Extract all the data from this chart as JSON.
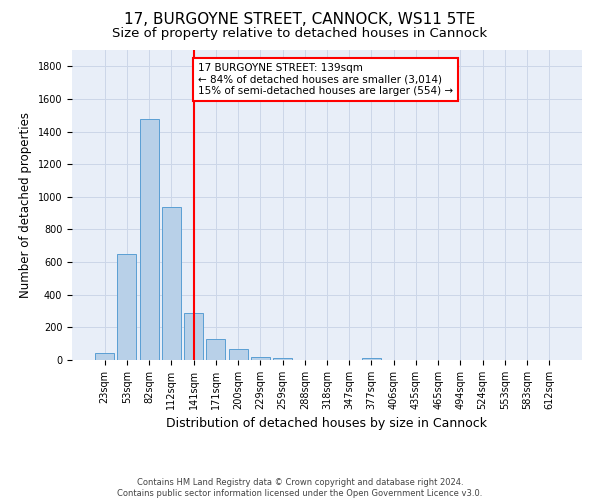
{
  "title_line1": "17, BURGOYNE STREET, CANNOCK, WS11 5TE",
  "title_line2": "Size of property relative to detached houses in Cannock",
  "xlabel": "Distribution of detached houses by size in Cannock",
  "ylabel": "Number of detached properties",
  "categories": [
    "23sqm",
    "53sqm",
    "82sqm",
    "112sqm",
    "141sqm",
    "171sqm",
    "200sqm",
    "229sqm",
    "259sqm",
    "288sqm",
    "318sqm",
    "347sqm",
    "377sqm",
    "406sqm",
    "435sqm",
    "465sqm",
    "494sqm",
    "524sqm",
    "553sqm",
    "583sqm",
    "612sqm"
  ],
  "values": [
    40,
    650,
    1480,
    940,
    290,
    130,
    68,
    20,
    10,
    0,
    0,
    0,
    10,
    0,
    0,
    0,
    0,
    0,
    0,
    0,
    0
  ],
  "bar_color": "#b8d0e8",
  "bar_edge_color": "#5a9fd4",
  "red_line_x": 4.0,
  "annotation_text": "17 BURGOYNE STREET: 139sqm\n← 84% of detached houses are smaller (3,014)\n15% of semi-detached houses are larger (554) →",
  "annotation_box_color": "white",
  "annotation_box_edge_color": "red",
  "ylim": [
    0,
    1900
  ],
  "yticks": [
    0,
    200,
    400,
    600,
    800,
    1000,
    1200,
    1400,
    1600,
    1800
  ],
  "grid_color": "#ccd6e8",
  "background_color": "#e8eef8",
  "footnote": "Contains HM Land Registry data © Crown copyright and database right 2024.\nContains public sector information licensed under the Open Government Licence v3.0.",
  "title_fontsize": 11,
  "subtitle_fontsize": 9.5,
  "ylabel_fontsize": 8.5,
  "xlabel_fontsize": 9,
  "tick_fontsize": 7,
  "annotation_fontsize": 7.5,
  "footnote_fontsize": 6,
  "bar_width": 0.85
}
